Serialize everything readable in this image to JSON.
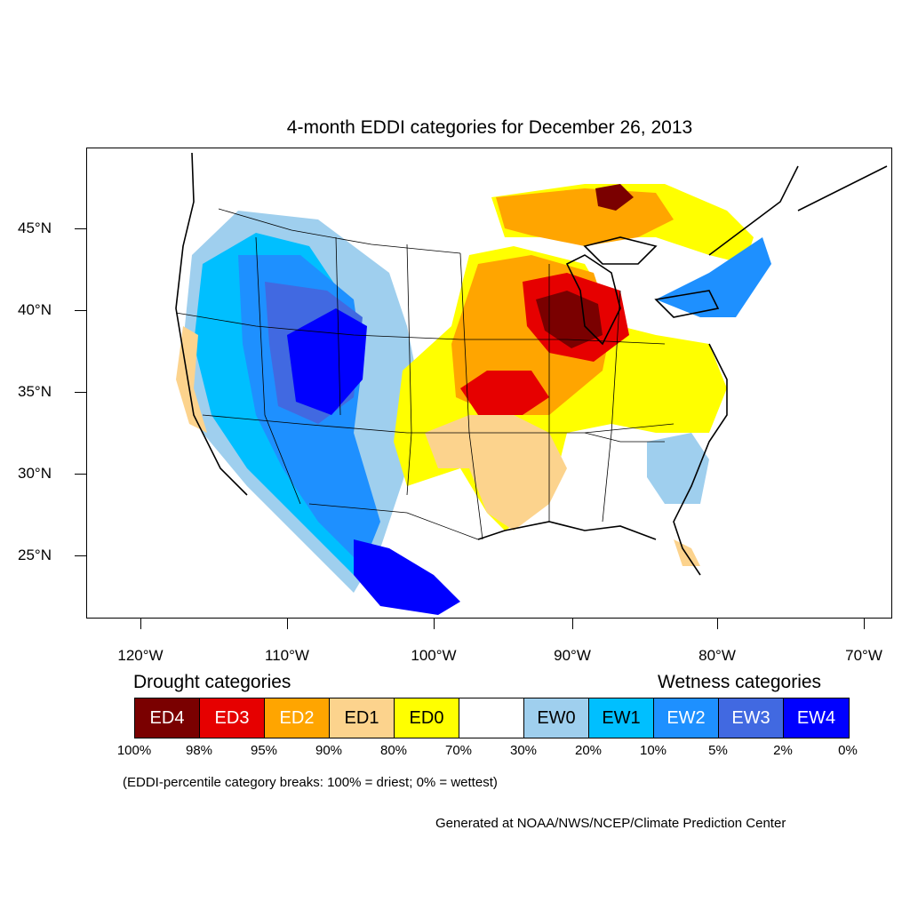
{
  "title": "4-month EDDI categories for December 26, 2013",
  "lat_labels": [
    "45°N",
    "40°N",
    "35°N",
    "30°N",
    "25°N"
  ],
  "lon_labels": [
    "120°W",
    "110°W",
    "100°W",
    "90°W",
    "80°W",
    "70°W"
  ],
  "drought_heading": "Drought categories",
  "wetness_heading": "Wetness categories",
  "legend": [
    {
      "label": "ED4",
      "color": "#7a0000",
      "text_color": "#ffffff"
    },
    {
      "label": "ED3",
      "color": "#e60000",
      "text_color": "#ffffff"
    },
    {
      "label": "ED2",
      "color": "#ffa500",
      "text_color": "#ffffff"
    },
    {
      "label": "ED1",
      "color": "#fcd38d",
      "text_color": "#000000"
    },
    {
      "label": "ED0",
      "color": "#ffff00",
      "text_color": "#000000"
    },
    {
      "label": "",
      "color": "#ffffff",
      "text_color": "#000000"
    },
    {
      "label": "EW0",
      "color": "#9fcfee",
      "text_color": "#000000"
    },
    {
      "label": "EW1",
      "color": "#00bfff",
      "text_color": "#000000"
    },
    {
      "label": "EW2",
      "color": "#1e90ff",
      "text_color": "#ffffff"
    },
    {
      "label": "EW3",
      "color": "#4169e1",
      "text_color": "#ffffff"
    },
    {
      "label": "EW4",
      "color": "#0000ff",
      "text_color": "#ffffff"
    }
  ],
  "percent_breaks": [
    "100%",
    "98%",
    "95%",
    "90%",
    "80%",
    "70%",
    "30%",
    "20%",
    "10%",
    "5%",
    "2%",
    "0%"
  ],
  "note": "(EDDI-percentile category breaks: 100% = driest; 0% = wettest)",
  "credit": "Generated at NOAA/NWS/NCEP/Climate Prediction Center"
}
